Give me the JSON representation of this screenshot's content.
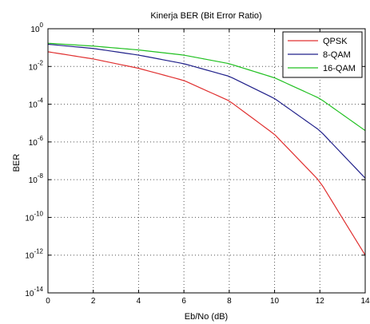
{
  "chart_data": {
    "type": "line",
    "title": "Kinerja BER (Bit Error Ratio)",
    "xlabel": "Eb/No (dB)",
    "ylabel": "BER",
    "xlim": [
      0,
      14
    ],
    "ylim_exp": [
      -14,
      0
    ],
    "yscale": "log",
    "grid": true,
    "legend_position": "top-right",
    "x_ticks": [
      "0",
      "2",
      "4",
      "6",
      "8",
      "10",
      "12",
      "14"
    ],
    "y_tick_base": "10",
    "y_tick_exponents": [
      "0",
      "-2",
      "-4",
      "-6",
      "-8",
      "-10",
      "-12",
      "-14"
    ],
    "x": [
      0,
      2,
      4,
      6,
      8,
      10,
      12,
      14
    ],
    "series": [
      {
        "name": "QPSK",
        "color": "#e03030",
        "values": [
          0.06,
          0.025,
          0.008,
          0.0018,
          0.00015,
          2.5e-06,
          8e-09,
          1e-12
        ]
      },
      {
        "name": "8-QAM",
        "color": "#20208a",
        "values": [
          0.15,
          0.09,
          0.04,
          0.014,
          0.003,
          0.0002,
          4e-06,
          1.2e-08
        ]
      },
      {
        "name": "16-QAM",
        "color": "#20c020",
        "values": [
          0.17,
          0.12,
          0.075,
          0.04,
          0.014,
          0.0025,
          0.0002,
          4e-06
        ]
      }
    ]
  }
}
